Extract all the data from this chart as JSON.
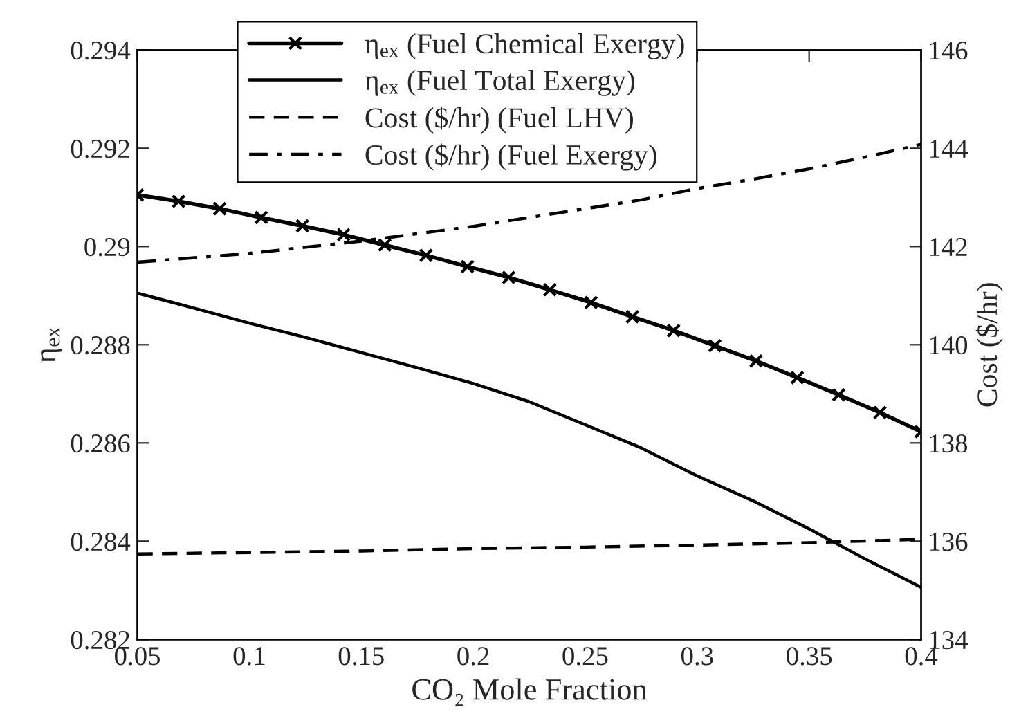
{
  "chart_data": {
    "type": "line",
    "xlabel": "CO₂ Mole Fraction",
    "ylabel": "η$_{ex}$",
    "y2label": "Cost ($/hr)",
    "xlim": [
      0.05,
      0.4
    ],
    "xticks": [
      0.05,
      0.1,
      0.15,
      0.2,
      0.25,
      0.3,
      0.35,
      0.4
    ],
    "ylim": [
      0.282,
      0.294
    ],
    "yticks": [
      0.282,
      0.284,
      0.286,
      0.288,
      0.29,
      0.292,
      0.294
    ],
    "y2lim": [
      134,
      146
    ],
    "y2ticks": [
      134,
      136,
      138,
      140,
      142,
      144,
      146
    ],
    "grid": false,
    "legend": "top",
    "series": [
      {
        "name": "η$_{ex}$ (Fuel Chemical Exergy)",
        "color": "#000000",
        "marker": "cross",
        "line_style": "solid",
        "x": [
          0.05,
          0.0684,
          0.0868,
          0.1053,
          0.1237,
          0.1421,
          0.1605,
          0.1789,
          0.1974,
          0.2158,
          0.2342,
          0.2526,
          0.2711,
          0.2895,
          0.3079,
          0.3263,
          0.3447,
          0.3632,
          0.3816,
          0.4
        ],
        "values": [
          0.29105,
          0.29092,
          0.29077,
          0.29059,
          0.29042,
          0.29024,
          0.29003,
          0.28982,
          0.28959,
          0.28937,
          0.28912,
          0.28886,
          0.28857,
          0.28829,
          0.28798,
          0.28767,
          0.28733,
          0.28698,
          0.28662,
          0.28623
        ]
      },
      {
        "name": "η$_{ex}$ (Fuel Total Exergy)",
        "color": "#000000",
        "marker": "none",
        "line_style": "solid",
        "x": [
          0.05,
          0.075,
          0.1,
          0.125,
          0.15,
          0.175,
          0.2,
          0.225,
          0.25,
          0.275,
          0.3,
          0.325,
          0.35,
          0.375,
          0.4
        ],
        "values": [
          0.28905,
          0.28875,
          0.28844,
          0.28815,
          0.28784,
          0.28753,
          0.28721,
          0.28684,
          0.28637,
          0.2859,
          0.28533,
          0.28482,
          0.28425,
          0.28364,
          0.28306
        ]
      },
      {
        "name": "Cost ($/hr) (Fuel LHV)",
        "color": "#000000",
        "marker": "none",
        "line_style": "dashed",
        "axis": "y2",
        "x": [
          0.05,
          0.1,
          0.15,
          0.2,
          0.25,
          0.3,
          0.35,
          0.4
        ],
        "values": [
          135.74,
          135.77,
          135.8,
          135.85,
          135.88,
          135.92,
          135.97,
          136.04
        ]
      },
      {
        "name": "Cost ($/hr) (Fuel Exergy)",
        "color": "#000000",
        "marker": "none",
        "line_style": "dashdot",
        "axis": "y2",
        "x": [
          0.05,
          0.1,
          0.15,
          0.2,
          0.25,
          0.275,
          0.3,
          0.325,
          0.35,
          0.375,
          0.4
        ],
        "values": [
          141.68,
          141.86,
          142.11,
          142.41,
          142.77,
          142.95,
          143.18,
          143.37,
          143.58,
          143.82,
          144.08
        ]
      }
    ]
  }
}
